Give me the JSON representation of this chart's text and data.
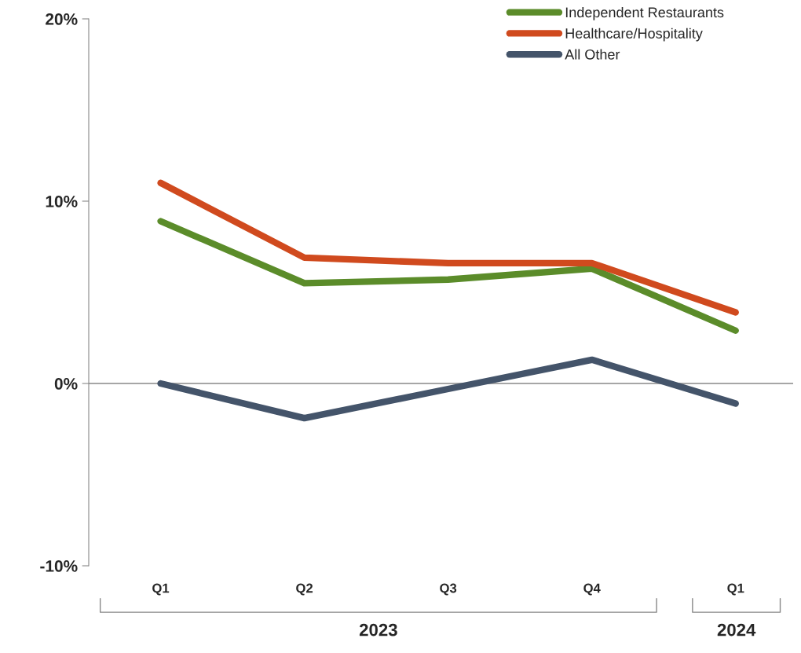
{
  "chart_data": {
    "type": "line",
    "categories": [
      "Q1",
      "Q2",
      "Q3",
      "Q4",
      "Q1"
    ],
    "series": [
      {
        "name": "Independent Restaurants",
        "color": "#5b8c2a",
        "values": [
          8.9,
          5.5,
          5.7,
          6.3,
          2.9
        ]
      },
      {
        "name": "Healthcare/Hospitality",
        "color": "#d04a1e",
        "values": [
          11.0,
          6.9,
          6.6,
          6.6,
          3.9
        ]
      },
      {
        "name": "All Other",
        "color": "#44546a",
        "values": [
          0,
          -1.9,
          -0.3,
          1.3,
          -1.1
        ]
      }
    ],
    "ylim": [
      -10,
      20
    ],
    "yticks": [
      {
        "value": -10,
        "label": "-10%"
      },
      {
        "value": 0,
        "label": "0%"
      },
      {
        "value": 10,
        "label": "10%"
      },
      {
        "value": 20,
        "label": "20%"
      }
    ],
    "annotations": [
      "2023",
      "2024"
    ],
    "ref_lines": [
      {
        "axis": "y",
        "value": 0,
        "color": "#888888",
        "line_style": "solid"
      }
    ],
    "legend": "top right",
    "marker": "none",
    "line_style": "solid",
    "grid": false
  }
}
